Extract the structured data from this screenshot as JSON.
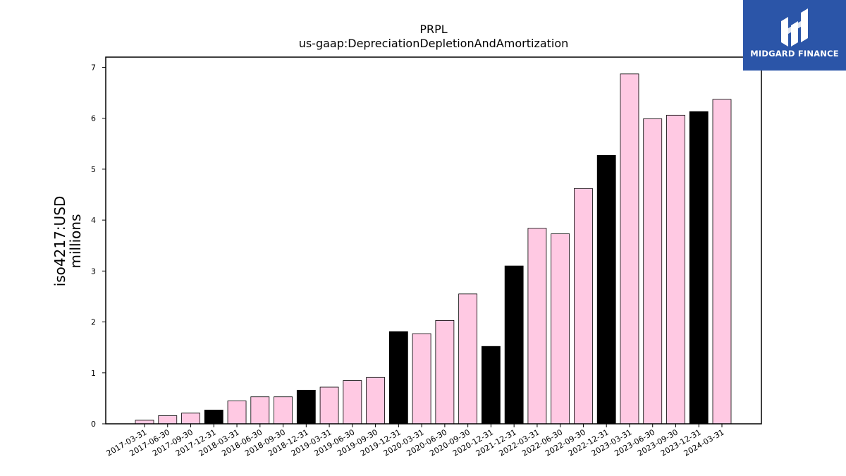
{
  "chart_data": {
    "type": "bar",
    "title": "PRPL",
    "subtitle": "us-gaap:DepreciationDepletionAndAmortization",
    "ylabel_line1": "iso4217:USD",
    "ylabel_line2": "millions",
    "xlabel": "",
    "ylim": [
      0,
      7.2
    ],
    "yticks": [
      0,
      1,
      2,
      3,
      4,
      5,
      6,
      7
    ],
    "grid": false,
    "categories": [
      "2017-03-31",
      "2017-06-30",
      "2017-09-30",
      "2017-12-31",
      "2018-03-31",
      "2018-06-30",
      "2018-09-30",
      "2018-12-31",
      "2019-03-31",
      "2019-06-30",
      "2019-09-30",
      "2019-12-31",
      "2020-03-31",
      "2020-06-30",
      "2020-09-30",
      "2020-12-31",
      "2021-12-31",
      "2022-03-31",
      "2022-06-30",
      "2022-09-30",
      "2022-12-31",
      "2023-03-31",
      "2023-06-30",
      "2023-09-30",
      "2023-12-31",
      "2024-03-31"
    ],
    "values": [
      0.07,
      0.16,
      0.21,
      0.27,
      0.45,
      0.53,
      0.53,
      0.66,
      0.72,
      0.85,
      0.91,
      1.81,
      1.77,
      2.03,
      2.55,
      1.52,
      3.1,
      3.84,
      3.73,
      4.62,
      5.27,
      6.87,
      5.99,
      6.06,
      6.13,
      6.37
    ],
    "bar_colors": [
      "#ffc9e3",
      "#ffc9e3",
      "#ffc9e3",
      "#000000",
      "#ffc9e3",
      "#ffc9e3",
      "#ffc9e3",
      "#000000",
      "#ffc9e3",
      "#ffc9e3",
      "#ffc9e3",
      "#000000",
      "#ffc9e3",
      "#ffc9e3",
      "#ffc9e3",
      "#000000",
      "#000000",
      "#ffc9e3",
      "#ffc9e3",
      "#ffc9e3",
      "#000000",
      "#ffc9e3",
      "#ffc9e3",
      "#ffc9e3",
      "#000000",
      "#ffc9e3"
    ]
  },
  "logo": {
    "text": "MIDGARD FINANCE",
    "background": "#2b55a8",
    "icon": "midgard-logo-icon"
  }
}
